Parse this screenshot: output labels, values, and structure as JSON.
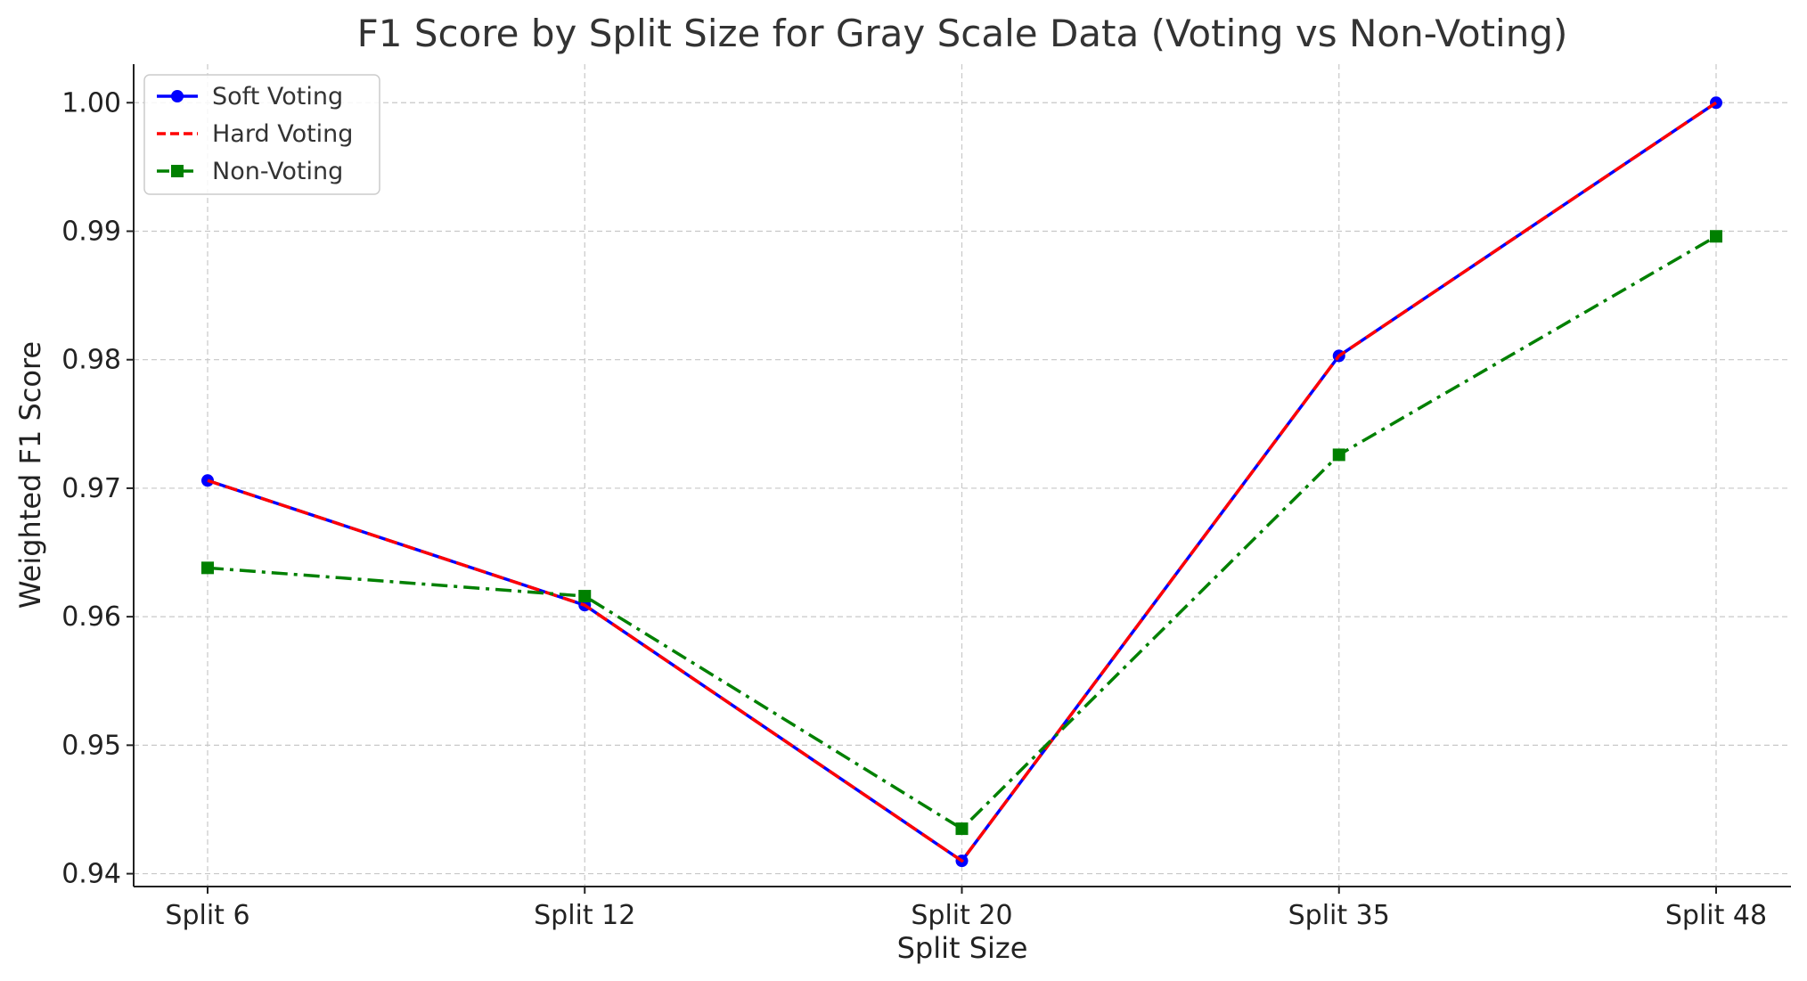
{
  "chart_data": {
    "type": "line",
    "title": "F1 Score by Split Size for Gray Scale Data (Voting vs Non-Voting)",
    "xlabel": "Split Size",
    "ylabel": "Weighted F1 Score",
    "categories": [
      "Split 6",
      "Split 12",
      "Split 20",
      "Split 35",
      "Split 48"
    ],
    "ylim": [
      0.939,
      1.003
    ],
    "yticks": [
      0.94,
      0.95,
      0.96,
      0.97,
      0.98,
      0.99,
      1.0
    ],
    "ytick_labels": [
      "0.94",
      "0.95",
      "0.96",
      "0.97",
      "0.98",
      "0.99",
      "1.00"
    ],
    "grid": true,
    "legend_position": "top-left",
    "series": [
      {
        "name": "Soft Voting",
        "values": [
          0.9706,
          0.9609,
          0.941,
          0.9803,
          1.0
        ],
        "color": "#0000ff",
        "style": "solid",
        "marker": "circle"
      },
      {
        "name": "Hard Voting",
        "values": [
          0.9706,
          0.9609,
          0.941,
          0.9803,
          1.0
        ],
        "color": "#ff0000",
        "style": "dashed",
        "marker": "none"
      },
      {
        "name": "Non-Voting",
        "values": [
          0.9638,
          0.9616,
          0.9435,
          0.9726,
          0.9896
        ],
        "color": "#008000",
        "style": "dashdot",
        "marker": "square"
      }
    ]
  }
}
